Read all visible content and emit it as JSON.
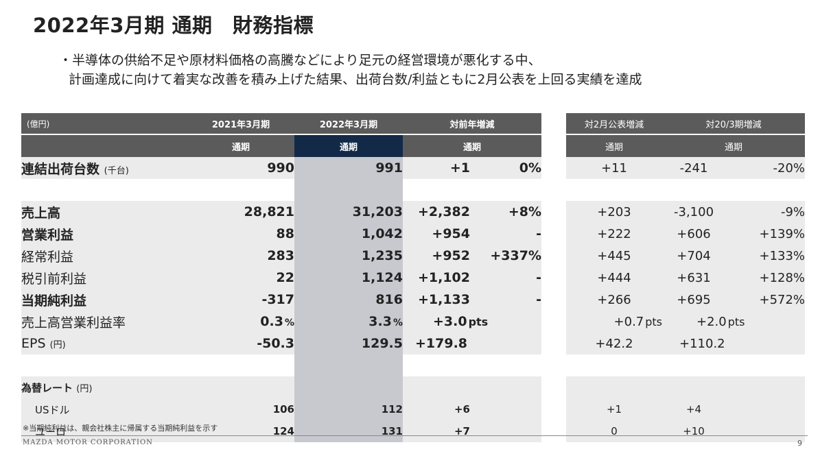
{
  "title": "2022年3月期 通期　財務指標",
  "bullets": [
    "・半導体の供給不足や原材料価格の高騰などにより足元の経営環境が悪化する中、",
    "計画達成に向けて着実な改善を積み上げた結果、出荷台数/利益ともに2月公表を上回る実績を達成"
  ],
  "table": {
    "unit_label": "(億円)",
    "headers": {
      "fy2021": "2021年3月期",
      "fy2022": "2022年3月期",
      "yoy": "対前年増減",
      "vs_feb": "対2月公表増減",
      "vs_fy20": "対20/3期増減"
    },
    "sub_label": "通期",
    "rows": [
      {
        "name": "連結出荷台数",
        "unit": "(千台)",
        "fy2021": "990",
        "fy2022": "991",
        "yoy": "+1",
        "yoy_pct": "0%",
        "vs_feb": "+11",
        "vs_fy20": "-241",
        "vs_fy20_pct": "-20%"
      },
      {
        "name": "売上高",
        "fy2021": "28,821",
        "fy2022": "31,203",
        "yoy": "+2,382",
        "yoy_pct": "+8%",
        "vs_feb": "+203",
        "vs_fy20": "-3,100",
        "vs_fy20_pct": "-9%"
      },
      {
        "name": "営業利益",
        "fy2021": "88",
        "fy2022": "1,042",
        "yoy": "+954",
        "yoy_pct": "-",
        "vs_feb": "+222",
        "vs_fy20": "+606",
        "vs_fy20_pct": "+139%"
      },
      {
        "name": "経常利益",
        "fy2021": "283",
        "fy2022": "1,235",
        "yoy": "+952",
        "yoy_pct": "+337%",
        "vs_feb": "+445",
        "vs_fy20": "+704",
        "vs_fy20_pct": "+133%"
      },
      {
        "name": "税引前利益",
        "fy2021": "22",
        "fy2022": "1,124",
        "yoy": "+1,102",
        "yoy_pct": "-",
        "vs_feb": "+444",
        "vs_fy20": "+631",
        "vs_fy20_pct": "+128%"
      },
      {
        "name": "当期純利益",
        "fy2021": "-317",
        "fy2022": "816",
        "yoy": "+1,133",
        "yoy_pct": "-",
        "vs_feb": "+266",
        "vs_fy20": "+695",
        "vs_fy20_pct": "+572%"
      },
      {
        "name": "売上高営業利益率",
        "fy2021": "0.3",
        "fy2021_unit": "%",
        "fy2022": "3.3",
        "fy2022_unit": "%",
        "yoy": "+3.0",
        "yoy_unit": "pts",
        "vs_feb": "+0.7",
        "vs_feb_unit": "pts",
        "vs_fy20": "+2.0",
        "vs_fy20_unit": "pts"
      },
      {
        "name": "EPS",
        "unit": "(円)",
        "fy2021": "-50.3",
        "fy2022": "129.5",
        "yoy": "+179.8",
        "vs_feb": "+42.2",
        "vs_fy20": "+110.2"
      }
    ],
    "fx": {
      "label": "為替レート",
      "unit": "(円)",
      "rows": [
        {
          "name": "USドル",
          "fy2021": "106",
          "fy2022": "112",
          "yoy": "+6",
          "vs_feb": "+1",
          "vs_fy20": "+4"
        },
        {
          "name": "ユーロ",
          "fy2021": "124",
          "fy2022": "131",
          "yoy": "+7",
          "vs_feb": "0",
          "vs_fy20": "+10"
        }
      ]
    }
  },
  "footnote": "※当期純利益は、親会社株主に帰属する当期純利益を示す",
  "footer": "MAZDA MOTOR CORPORATION",
  "page_number": "9",
  "colors": {
    "header_gray": "#5b5b5b",
    "header_navy": "#122a47",
    "row_gray": "#ebebeb",
    "highlight_col": "#c7c9cf"
  }
}
